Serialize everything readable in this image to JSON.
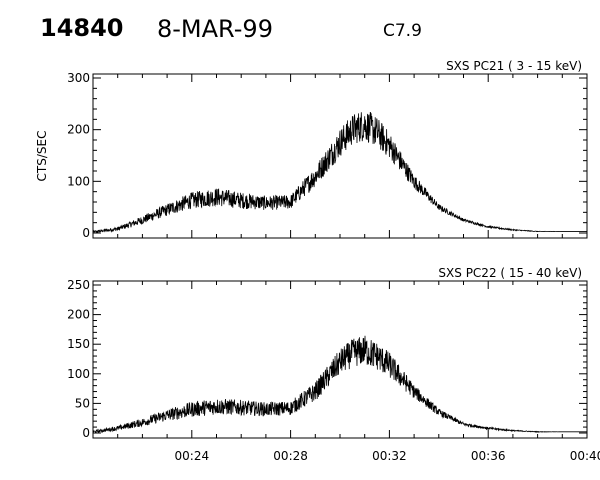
{
  "header": {
    "event_number": "14840",
    "date": "8-MAR-99",
    "flare_class": "C7.9"
  },
  "chart_data": [
    {
      "type": "line",
      "title": "SXS PC21  (  3 - 15 keV)",
      "ylabel": "CTS/SEC",
      "xlabel": "",
      "xlim": [
        "00:20",
        "00:40"
      ],
      "ylim": [
        0,
        300
      ],
      "yticks": [
        0,
        100,
        200,
        300
      ],
      "xticks": [
        "00:24",
        "00:28",
        "00:32",
        "00:36",
        "00:40"
      ],
      "grid": false,
      "x_tick_labels_shown": false,
      "x": [
        "00:20",
        "00:21",
        "00:22",
        "00:23",
        "00:24",
        "00:25",
        "00:26",
        "00:27",
        "00:28",
        "00:29",
        "00:30",
        "00:30.5",
        "00:31",
        "00:31.5",
        "00:32",
        "00:33",
        "00:34",
        "00:35",
        "00:36",
        "00:37",
        "00:38",
        "00:39",
        "00:40"
      ],
      "y": [
        2,
        8,
        25,
        45,
        63,
        70,
        63,
        58,
        60,
        110,
        175,
        200,
        210,
        195,
        170,
        100,
        50,
        25,
        12,
        6,
        3,
        3,
        3
      ],
      "noise_amplitude": [
        2,
        4,
        8,
        12,
        16,
        18,
        16,
        14,
        14,
        20,
        28,
        30,
        32,
        30,
        26,
        14,
        6,
        3,
        2,
        1,
        0.5,
        0,
        0
      ]
    },
    {
      "type": "line",
      "title": "SXS PC22  ( 15 - 40 keV)",
      "ylabel": "",
      "xlabel": "",
      "xlim": [
        "00:20",
        "00:40"
      ],
      "ylim": [
        0,
        250
      ],
      "yticks": [
        0,
        50,
        100,
        150,
        200,
        250
      ],
      "xticks": [
        "00:24",
        "00:28",
        "00:32",
        "00:36",
        "00:40"
      ],
      "grid": false,
      "x_tick_labels_shown": true,
      "x": [
        "00:20",
        "00:21",
        "00:22",
        "00:23",
        "00:24",
        "00:25",
        "00:26",
        "00:27",
        "00:28",
        "00:29",
        "00:30",
        "00:30.5",
        "00:31",
        "00:31.5",
        "00:32",
        "00:33",
        "00:34",
        "00:35",
        "00:36",
        "00:37",
        "00:38",
        "00:39",
        "00:40"
      ],
      "y": [
        2,
        8,
        18,
        30,
        40,
        45,
        43,
        40,
        42,
        70,
        120,
        135,
        140,
        130,
        115,
        70,
        35,
        15,
        8,
        4,
        2,
        2,
        2
      ],
      "noise_amplitude": [
        2,
        4,
        7,
        10,
        13,
        14,
        13,
        12,
        12,
        16,
        22,
        24,
        26,
        24,
        22,
        12,
        6,
        3,
        2,
        1,
        0.5,
        0,
        0
      ]
    }
  ]
}
